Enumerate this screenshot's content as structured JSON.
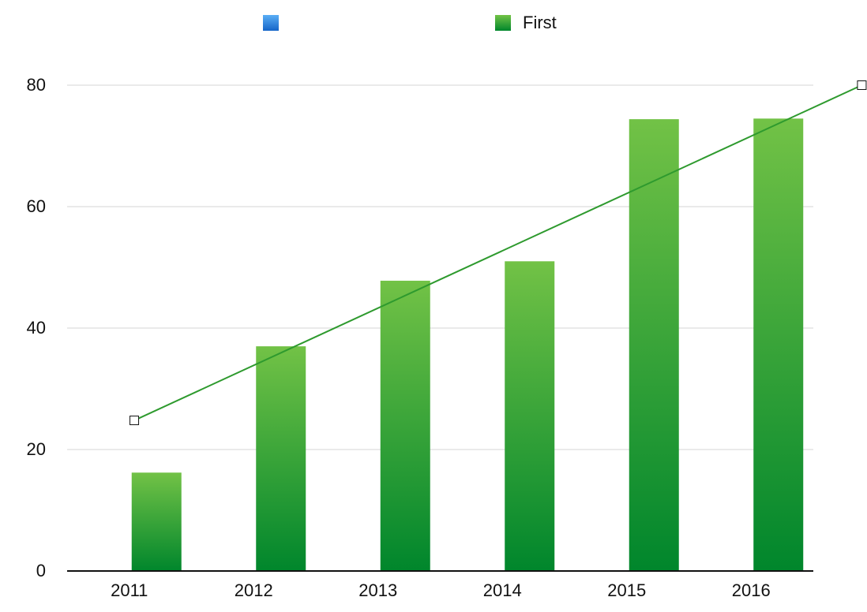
{
  "chart_data": {
    "type": "bar",
    "categories": [
      "2011",
      "2012",
      "2013",
      "2014",
      "2015",
      "2016"
    ],
    "series": [
      {
        "color": "#2a7fd8",
        "values": [
          null,
          null,
          null,
          null,
          null,
          null
        ]
      },
      {
        "name": "First",
        "color": "#3aa63c",
        "values": [
          16.2,
          37.0,
          47.8,
          51.0,
          74.4,
          74.5
        ]
      }
    ],
    "trendline": {
      "color": "#2e9a2e",
      "x": [
        0.04,
        5.89
      ],
      "values": [
        24.8,
        80
      ]
    },
    "ylim": [
      0,
      80
    ],
    "yticks": [
      0,
      20,
      40,
      60,
      80
    ],
    "grid": true
  }
}
